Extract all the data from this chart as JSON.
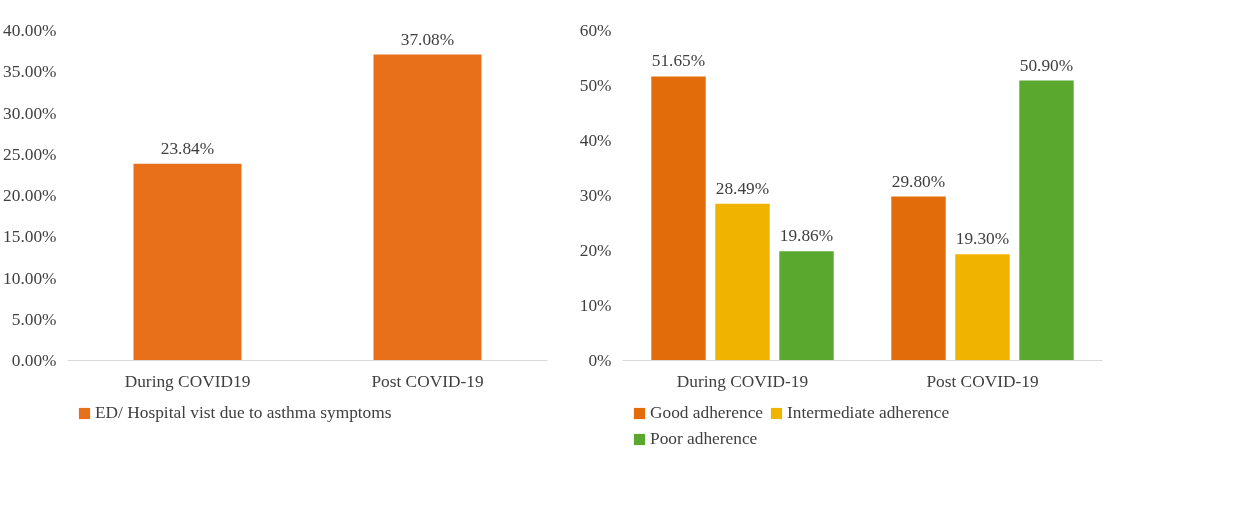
{
  "chart_data": [
    {
      "type": "bar",
      "categories": [
        "During COVID19",
        "Post COVID-19"
      ],
      "series": [
        {
          "name": "ED/ Hospital vist due to asthma symptoms",
          "color": "#e8701a",
          "values": [
            23.84,
            37.08
          ],
          "value_labels": [
            "23.84%",
            "37.08%"
          ]
        }
      ],
      "ylim": [
        0,
        40
      ],
      "yticks": [
        {
          "value": 0,
          "label": "0.00%"
        },
        {
          "value": 5,
          "label": "5.00%"
        },
        {
          "value": 10,
          "label": "10.00%"
        },
        {
          "value": 15,
          "label": "15.00%"
        },
        {
          "value": 20,
          "label": "20.00%"
        },
        {
          "value": 25,
          "label": "25.00%"
        },
        {
          "value": 30,
          "label": "30.00%"
        },
        {
          "value": 35,
          "label": "35.00%"
        },
        {
          "value": 40,
          "label": "40.00%"
        }
      ],
      "grid": false,
      "legend": "bottom"
    },
    {
      "type": "bar",
      "categories": [
        "During COVID-19",
        "Post COVID-19"
      ],
      "series": [
        {
          "name": "Good adherence",
          "color": "#e36c0a",
          "values": [
            51.65,
            29.8
          ],
          "value_labels": [
            "51.65%",
            "29.80%"
          ]
        },
        {
          "name": "Intermediate adherence",
          "color": "#f0b400",
          "values": [
            28.49,
            19.3
          ],
          "value_labels": [
            "28.49%",
            "19.30%"
          ]
        },
        {
          "name": "Poor adherence",
          "color": "#5aa82e",
          "values": [
            19.86,
            50.9
          ],
          "value_labels": [
            "19.86%",
            "50.90%"
          ]
        }
      ],
      "ylim": [
        0,
        60
      ],
      "yticks": [
        {
          "value": 0,
          "label": "0%"
        },
        {
          "value": 10,
          "label": "10%"
        },
        {
          "value": 20,
          "label": "20%"
        },
        {
          "value": 30,
          "label": "30%"
        },
        {
          "value": 40,
          "label": "40%"
        },
        {
          "value": 50,
          "label": "50%"
        },
        {
          "value": 60,
          "label": "60%"
        }
      ],
      "grid": false,
      "legend": "bottom"
    }
  ]
}
